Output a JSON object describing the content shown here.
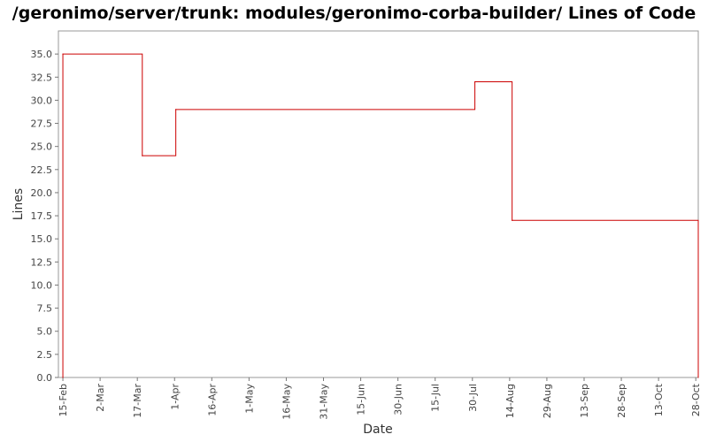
{
  "chart_data": {
    "type": "line",
    "step": true,
    "title": "/geronimo/server/trunk: modules/geronimo-corba-builder/ Lines of Code",
    "xlabel": "Date",
    "ylabel": "Lines",
    "ylim": [
      0,
      37.5
    ],
    "xlim": [
      -1.8,
      256
    ],
    "yticks": [
      0.0,
      2.5,
      5.0,
      7.5,
      10.0,
      12.5,
      15.0,
      17.5,
      20.0,
      22.5,
      25.0,
      27.5,
      30.0,
      32.5,
      35.0
    ],
    "ytick_labels": [
      "0.0",
      "2.5",
      "5.0",
      "7.5",
      "10.0",
      "12.5",
      "15.0",
      "17.5",
      "20.0",
      "22.5",
      "25.0",
      "27.5",
      "30.0",
      "32.5",
      "35.0"
    ],
    "xticks": [
      {
        "label": "15-Feb",
        "day": 0
      },
      {
        "label": "2-Mar",
        "day": 15
      },
      {
        "label": "17-Mar",
        "day": 30
      },
      {
        "label": "1-Apr",
        "day": 45
      },
      {
        "label": "16-Apr",
        "day": 60
      },
      {
        "label": "1-May",
        "day": 75
      },
      {
        "label": "16-May",
        "day": 90
      },
      {
        "label": "31-May",
        "day": 105
      },
      {
        "label": "15-Jun",
        "day": 120
      },
      {
        "label": "30-Jun",
        "day": 135
      },
      {
        "label": "15-Jul",
        "day": 150
      },
      {
        "label": "30-Jul",
        "day": 165
      },
      {
        "label": "14-Aug",
        "day": 180
      },
      {
        "label": "29-Aug",
        "day": 195
      },
      {
        "label": "13-Sep",
        "day": 210
      },
      {
        "label": "28-Sep",
        "day": 225
      },
      {
        "label": "13-Oct",
        "day": 240
      },
      {
        "label": "28-Oct",
        "day": 255
      }
    ],
    "series": [
      {
        "name": "Lines of Code",
        "color": "#cc0000",
        "points": [
          {
            "day": 0,
            "value": 0
          },
          {
            "day": 0,
            "value": 35
          },
          {
            "day": 32,
            "value": 24
          },
          {
            "day": 45.5,
            "value": 29
          },
          {
            "day": 166,
            "value": 32
          },
          {
            "day": 181,
            "value": 17
          },
          {
            "day": 256,
            "value": 0
          }
        ]
      }
    ]
  }
}
